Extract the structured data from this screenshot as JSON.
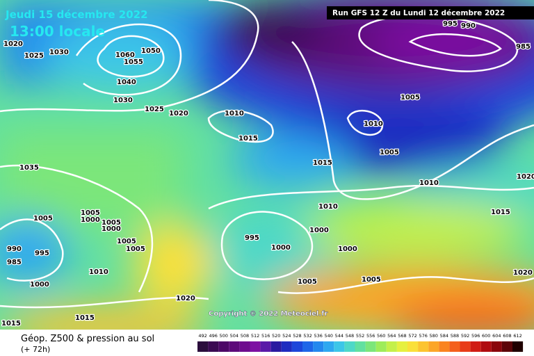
{
  "header": {
    "date": "Jeudi 15 décembre 2022",
    "time": "13:00 locale",
    "run": "Run GFS 12 Z du Lundi 12 décembre 2022"
  },
  "copyright": "Copyright © 2022 Meteociel.fr",
  "footer": {
    "title": "Géop. Z500 & pression au sol",
    "lead": "(+ 72h)"
  },
  "legend": {
    "scale": [
      "492",
      "496",
      "500",
      "504",
      "508",
      "512",
      "516",
      "520",
      "524",
      "528",
      "532",
      "536",
      "540",
      "544",
      "548",
      "552",
      "556",
      "560",
      "564",
      "568",
      "572",
      "576",
      "580",
      "584",
      "588",
      "592",
      "596",
      "600",
      "604",
      "608",
      "612"
    ],
    "colors": [
      "#2b0d3c",
      "#3b0a52",
      "#4c0866",
      "#5d0a7a",
      "#6e0c8e",
      "#7d10a2",
      "#5a1aa8",
      "#2a1aa0",
      "#1e2cc0",
      "#1d46da",
      "#1f66e8",
      "#2488ee",
      "#2ea8f0",
      "#3cc6e8",
      "#4ed8c8",
      "#62e0a0",
      "#7ce67a",
      "#9eec5a",
      "#c4f04a",
      "#e6f040",
      "#fae03a",
      "#fcc430",
      "#fca628",
      "#fa8420",
      "#f4601c",
      "#e83c18",
      "#d01c14",
      "#b00c10",
      "#8a060c",
      "#5c0408",
      "#200000"
    ]
  },
  "isobars": [
    "1020",
    "1025",
    "1030",
    "1060",
    "1055",
    "1050",
    "1040",
    "1030",
    "1025",
    "1020",
    "1010",
    "1015",
    "1035",
    "1005",
    "1005",
    "1000",
    "1005",
    "1000",
    "1005",
    "1005",
    "990",
    "995",
    "985",
    "1010",
    "1000",
    "995",
    "1000",
    "1000",
    "1000",
    "1010",
    "1015",
    "1010",
    "1005",
    "1005",
    "1010",
    "995",
    "990",
    "985",
    "1020",
    "1015",
    "1020",
    "1005",
    "1005",
    "1020",
    "1015",
    "1015"
  ]
}
